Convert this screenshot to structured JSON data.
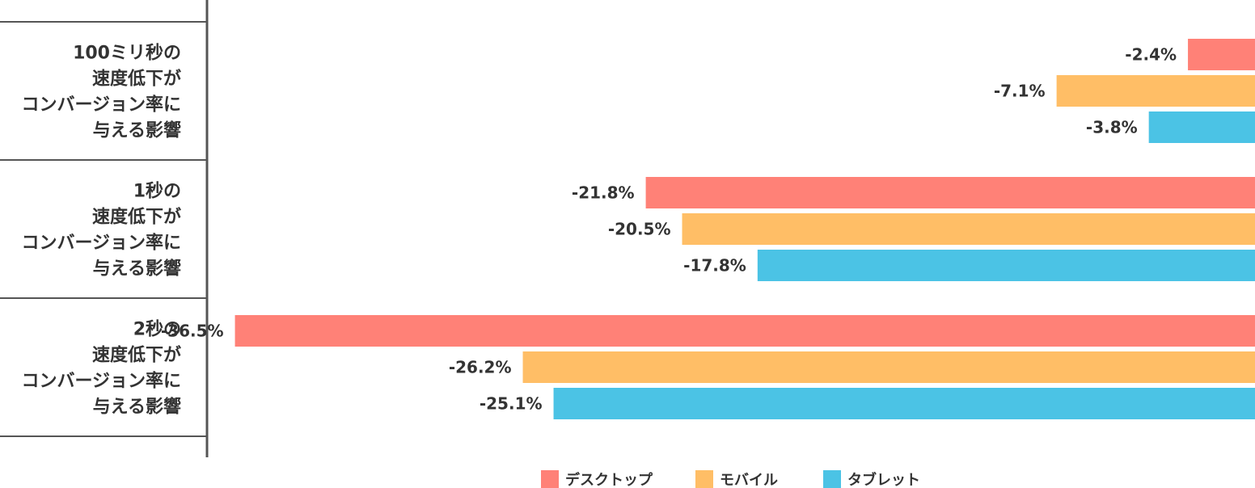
{
  "chart_data": {
    "type": "bar",
    "orientation": "horizontal",
    "direction": "negative-leftward",
    "categories": [
      [
        "100ミリ秒の",
        "速度低下が",
        "コンバージョン率に",
        "与える影響"
      ],
      [
        "1秒の",
        "速度低下が",
        "コンバージョン率に",
        "与える影響"
      ],
      [
        "2秒の",
        "速度低下が",
        "コンバージョン率に",
        "与える影響"
      ]
    ],
    "series": [
      {
        "name": "デスクトップ",
        "color": "#FF8177",
        "values": [
          -2.4,
          -21.8,
          -36.5
        ],
        "labels": [
          "-2.4%",
          "-21.8%",
          "-36.5%"
        ]
      },
      {
        "name": "モバイル",
        "color": "#FFBE66",
        "values": [
          -7.1,
          -20.5,
          -26.2
        ],
        "labels": [
          "-7.1%",
          "-20.5%",
          "-26.2%"
        ]
      },
      {
        "name": "タブレット",
        "color": "#4BC3E5",
        "values": [
          -3.8,
          -17.8,
          -25.1
        ],
        "labels": [
          "-3.8%",
          "-17.8%",
          "-25.1%"
        ]
      }
    ],
    "xlim": [
      -37.5,
      0
    ],
    "legend_position": "bottom-center",
    "grid": false
  }
}
